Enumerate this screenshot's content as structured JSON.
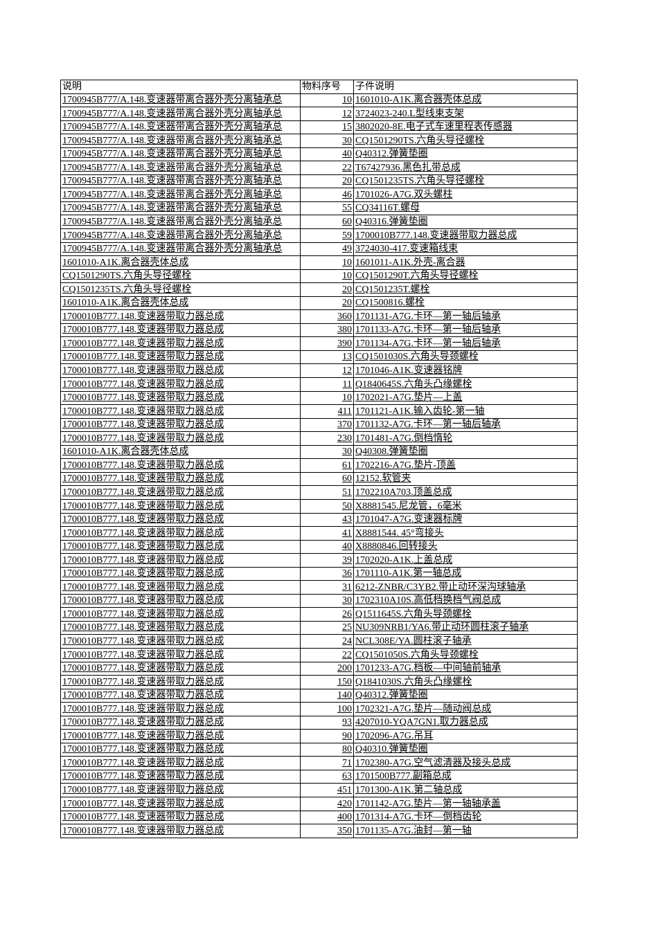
{
  "header": {
    "col_desc": "说明",
    "col_seq": "物料序号",
    "col_child": "子件说明"
  },
  "rows": [
    [
      "1700945B777/A.148.变速器带离合器外壳分离轴承总",
      "10",
      "1601010-A1K.离合器壳体总成"
    ],
    [
      "1700945B777/A.148.变速器带离合器外壳分离轴承总",
      "12",
      "3724023-240.L型线束支架"
    ],
    [
      "1700945B777/A.148.变速器带离合器外壳分离轴承总",
      "15",
      "3802020-8E.电子式车速里程表传感器"
    ],
    [
      "1700945B777/A.148.变速器带离合器外壳分离轴承总",
      "30",
      "CQ1501290TS.六角头导径螺栓"
    ],
    [
      "1700945B777/A.148.变速器带离合器外壳分离轴承总",
      "40",
      "Q40312.弹簧垫圈"
    ],
    [
      "1700945B777/A.148.变速器带离合器外壳分离轴承总",
      "22",
      "T67427936.黑色扎带总成"
    ],
    [
      "1700945B777/A.148.变速器带离合器外壳分离轴承总",
      "20",
      "CQ1501235TS.六角头导径螺栓"
    ],
    [
      "1700945B777/A.148.变速器带离合器外壳分离轴承总",
      "46",
      "1701026-A7G.双头螺柱"
    ],
    [
      "1700945B777/A.148.变速器带离合器外壳分离轴承总",
      "55",
      "CQ34116T.螺母"
    ],
    [
      "1700945B777/A.148.变速器带离合器外壳分离轴承总",
      "60",
      "Q40316.弹簧垫圈"
    ],
    [
      "1700945B777/A.148.变速器带离合器外壳分离轴承总",
      "59",
      "1700010B777.148.变速器带取力器总成"
    ],
    [
      "1700945B777/A.148.变速器带离合器外壳分离轴承总",
      "49",
      "3724030-417.变速箱线束"
    ],
    [
      "1601010-A1K.离合器壳体总成",
      "10",
      "1601011-A1K.外壳-离合器"
    ],
    [
      "CQ1501290TS.六角头导径螺栓",
      "10",
      "CQ1501290T.六角头导径螺栓"
    ],
    [
      "CQ1501235TS.六角头导径螺栓",
      "20",
      "CQ1501235T.螺栓"
    ],
    [
      "1601010-A1K.离合器壳体总成",
      "20",
      "CQ1500816.螺栓"
    ],
    [
      "1700010B777.148.变速器带取力器总成",
      "360",
      "1701131-A7G.卡环—第一轴后轴承"
    ],
    [
      "1700010B777.148.变速器带取力器总成",
      "380",
      "1701133-A7G.卡环—第一轴后轴承"
    ],
    [
      "1700010B777.148.变速器带取力器总成",
      "390",
      "1701134-A7G.卡环—第一轴后轴承"
    ],
    [
      "1700010B777.148.变速器带取力器总成",
      "13",
      "CQ1501030S.六角头导颈螺栓"
    ],
    [
      "1700010B777.148.变速器带取力器总成",
      "12",
      "1701046-A1K.变速器铭牌"
    ],
    [
      "1700010B777.148.变速器带取力器总成",
      "11",
      "Q1840645S.六角头凸缘螺栓"
    ],
    [
      "1700010B777.148.变速器带取力器总成",
      "10",
      "1702021-A7G.垫片—上盖"
    ],
    [
      "1700010B777.148.变速器带取力器总成",
      "411",
      "1701121-A1K.输入齿轮-第一轴"
    ],
    [
      "1700010B777.148.变速器带取力器总成",
      "370",
      "1701132-A7G.卡环—第一轴后轴承"
    ],
    [
      "1700010B777.148.变速器带取力器总成",
      "230",
      "1701481-A7G.倒档惰轮"
    ],
    [
      "1601010-A1K.离合器壳体总成",
      "30",
      "Q40308.弹簧垫圈"
    ],
    [
      "1700010B777.148.变速器带取力器总成",
      "61",
      "1702216-A7G.垫片-顶盖"
    ],
    [
      "1700010B777.148.变速器带取力器总成",
      "60",
      "12152.软管夹"
    ],
    [
      "1700010B777.148.变速器带取力器总成",
      "51",
      "1702210A703.顶盖总成"
    ],
    [
      "1700010B777.148.变速器带取力器总成",
      "50",
      "X8881545.尼龙管，6毫米"
    ],
    [
      "1700010B777.148.变速器带取力器总成",
      "43",
      "1701047-A7G.变速器标牌"
    ],
    [
      "1700010B777.148.变速器带取力器总成",
      "41",
      "X8881544. 45°弯接头"
    ],
    [
      "1700010B777.148.变速器带取力器总成",
      "40",
      "X8880846.回转接头"
    ],
    [
      "1700010B777.148.变速器带取力器总成",
      "39",
      "1702020-A1K.上盖总成"
    ],
    [
      "1700010B777.148.变速器带取力器总成",
      "36",
      "1701110-A1K.第一轴总成"
    ],
    [
      "1700010B777.148.变速器带取力器总成",
      "31",
      "6212-ZNBR/C3YB2.带止动环深沟球轴承"
    ],
    [
      "1700010B777.148.变速器带取力器总成",
      "30",
      "1702310A10S.高低档换档气阀总成"
    ],
    [
      "1700010B777.148.变速器带取力器总成",
      "26",
      "Q1511645S.六角头导颈螺栓"
    ],
    [
      "1700010B777.148.变速器带取力器总成",
      "25",
      "NU309NRB1/YA6.带止动环圆柱滚子轴承"
    ],
    [
      "1700010B777.148.变速器带取力器总成",
      "24",
      "NCL308E/YA.圆柱滚子轴承"
    ],
    [
      "1700010B777.148.变速器带取力器总成",
      "22",
      "CQ1501050S.六角头导颈螺栓"
    ],
    [
      "1700010B777.148.变速器带取力器总成",
      "200",
      "1701233-A7G.档板—中间轴前轴承"
    ],
    [
      "1700010B777.148.变速器带取力器总成",
      "150",
      "Q1841030S.六角头凸缘螺栓"
    ],
    [
      "1700010B777.148.变速器带取力器总成",
      "140",
      "Q40312.弹簧垫圈"
    ],
    [
      "1700010B777.148.变速器带取力器总成",
      "100",
      "1702321-A7G.垫片—随动阀总成"
    ],
    [
      "1700010B777.148.变速器带取力器总成",
      "93",
      "4207010-YQA7GN1.取力器总成"
    ],
    [
      "1700010B777.148.变速器带取力器总成",
      "90",
      "1702096-A7G.吊耳"
    ],
    [
      "1700010B777.148.变速器带取力器总成",
      "80",
      "Q40310.弹簧垫圈"
    ],
    [
      "1700010B777.148.变速器带取力器总成",
      "71",
      "1702380-A7G.空气滤清器及接头总成"
    ],
    [
      "1700010B777.148.变速器带取力器总成",
      "63",
      "1701500B777.副箱总成"
    ],
    [
      "1700010B777.148.变速器带取力器总成",
      "451",
      "1701300-A1K.第二轴总成"
    ],
    [
      "1700010B777.148.变速器带取力器总成",
      "420",
      "1701142-A7G.垫片—第一轴轴承盖"
    ],
    [
      "1700010B777.148.变速器带取力器总成",
      "400",
      "1701314-A7G.卡环—倒档齿轮"
    ],
    [
      "1700010B777.148.变速器带取力器总成",
      "350",
      "1701135-A7G.油封—第一轴"
    ]
  ]
}
